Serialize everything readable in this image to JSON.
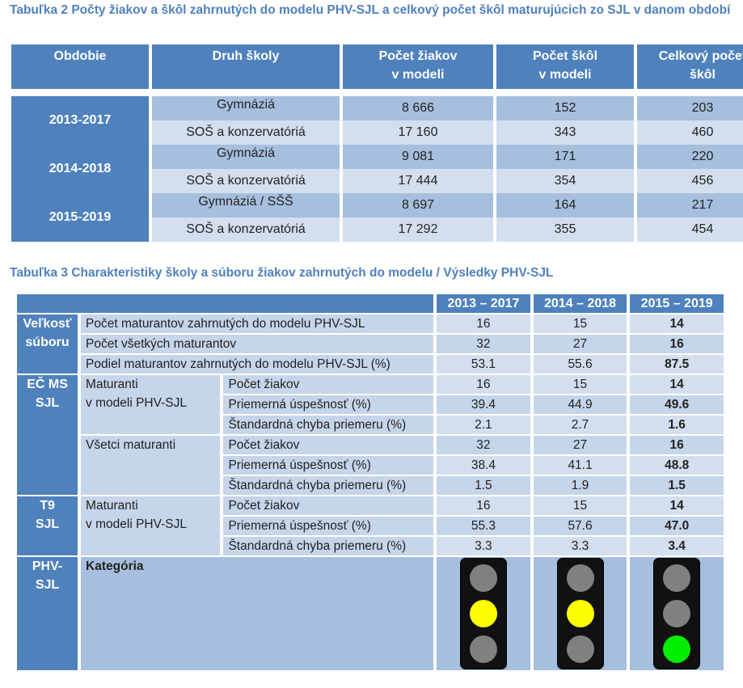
{
  "table2": {
    "caption": "Tabuľka 2 Počty žiakov a škôl zahrnutých do modelu PHV-SJL  a celkový počet škôl maturujúcich zo SJL v danom období",
    "headers": [
      "Obdobie",
      "Druh školy",
      "Počet žiakov v modeli",
      "Počet škôl v modeli",
      "Celkový počet škôl"
    ],
    "header_lines": {
      "students": [
        "Počet žiakov",
        "v modeli"
      ],
      "schools": [
        "Počet škôl",
        "v modeli"
      ],
      "total": [
        "Celkový počet",
        "škôl"
      ]
    },
    "periods": [
      {
        "period": "2013-2017",
        "rows": [
          {
            "type": "Gymnáziá",
            "students": "8 666",
            "schools": "152",
            "total": "203"
          },
          {
            "type": "SOŠ a konzervatóriá",
            "students": "17 160",
            "schools": "343",
            "total": "460"
          }
        ]
      },
      {
        "period": "2014-2018",
        "rows": [
          {
            "type": "Gymnáziá",
            "students": "9 081",
            "schools": "171",
            "total": "220"
          },
          {
            "type": "SOŠ a konzervatóriá",
            "students": "17 444",
            "schools": "354",
            "total": "456"
          }
        ]
      },
      {
        "period": "2015-2019",
        "rows": [
          {
            "type": "Gymnáziá / SŠŠ",
            "students": "8 697",
            "schools": "164",
            "total": "217"
          },
          {
            "type": "SOŠ a konzervatóriá",
            "students": "17 292",
            "schools": "355",
            "total": "454"
          }
        ]
      }
    ]
  },
  "table3": {
    "caption": "Tabuľka 3 Charakteristiky školy a súboru žiakov zahrnutých do modelu / Výsledky PHV-SJL",
    "years": [
      "2013 – 2017",
      "2014 – 2018",
      "2015 – 2019"
    ],
    "velkost": {
      "label_lines": [
        "Veľkosť",
        "súboru"
      ],
      "rows": [
        {
          "label": "Počet maturantov zahrnutých do modelu PHV-SJL",
          "values": [
            "16",
            "15",
            "14"
          ]
        },
        {
          "label": "Počet všetkých maturantov",
          "values": [
            "32",
            "27",
            "16"
          ]
        },
        {
          "label": "Podiel maturantov zahrnutých do modelu PHV-SJL (%)",
          "values": [
            "53.1",
            "55.6",
            "87.5"
          ]
        }
      ]
    },
    "ecms": {
      "label_lines": [
        "EČ MS",
        "SJL"
      ],
      "groups": [
        {
          "label_lines": [
            "Maturanti",
            "v  modeli PHV-SJL"
          ],
          "rows": [
            {
              "label": "Počet žiakov",
              "values": [
                "16",
                "15",
                "14"
              ]
            },
            {
              "label": "Priemerná úspešnosť  (%)",
              "values": [
                "39.4",
                "44.9",
                "49.6"
              ]
            },
            {
              "label": "Štandardná chyba priemeru (%)",
              "values": [
                "2.1",
                "2.7",
                "1.6"
              ]
            }
          ]
        },
        {
          "label_lines": [
            "Všetci maturanti",
            ""
          ],
          "rows": [
            {
              "label": "Počet žiakov",
              "values": [
                "32",
                "27",
                "16"
              ]
            },
            {
              "label": "Priemerná úspešnosť  (%)",
              "values": [
                "38.4",
                "41.1",
                "48.8"
              ]
            },
            {
              "label": "Štandardná chyba priemeru (%)",
              "values": [
                "1.5",
                "1.9",
                "1.5"
              ]
            }
          ]
        }
      ]
    },
    "t9": {
      "label_lines": [
        "T9",
        "SJL"
      ],
      "group": {
        "label_lines": [
          "Maturanti",
          "v  modeli PHV-SJL"
        ],
        "rows": [
          {
            "label": "Počet žiakov",
            "values": [
              "16",
              "15",
              "14"
            ]
          },
          {
            "label": "Priemerná úspešnosť  (%)",
            "values": [
              "55.3",
              "57.6",
              "47.0"
            ]
          },
          {
            "label": "Štandardná chyba priemeru (%)",
            "values": [
              "3.3",
              "3.3",
              "3.4"
            ]
          }
        ]
      }
    },
    "phv": {
      "label_lines": [
        "PHV-",
        "SJL"
      ],
      "category_label": "Kategória",
      "lights": [
        {
          "icon": "traffic-light-yellow-icon",
          "lit": "middle",
          "colors": {
            "top": "#808080",
            "middle": "#ffff00",
            "bottom": "#808080"
          }
        },
        {
          "icon": "traffic-light-yellow-icon",
          "lit": "middle",
          "colors": {
            "top": "#808080",
            "middle": "#ffff00",
            "bottom": "#808080"
          }
        },
        {
          "icon": "traffic-light-green-icon",
          "lit": "bottom",
          "colors": {
            "top": "#808080",
            "middle": "#808080",
            "bottom": "#00ee00"
          }
        }
      ]
    }
  },
  "colors": {
    "accent": "#4f81bd",
    "caption": "#4f81bd",
    "row_dark": "#a7bfde",
    "row_light": "#d3dfee"
  }
}
